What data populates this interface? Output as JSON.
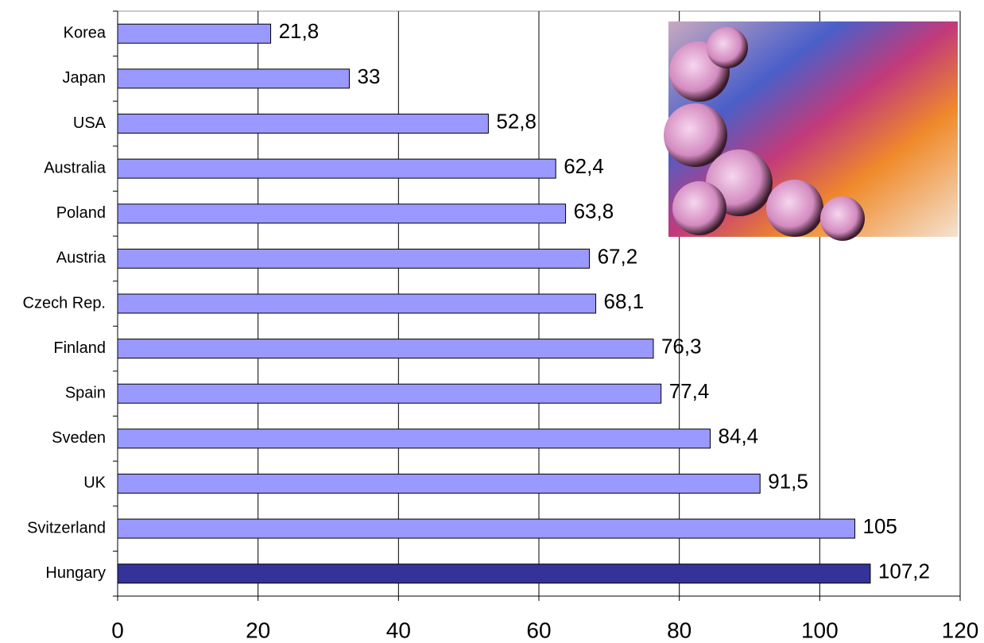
{
  "chart_data": {
    "type": "barh",
    "categories": [
      "Korea",
      "Japan",
      "USA",
      "Australia",
      "Poland",
      "Austria",
      "Czech Rep.",
      "Finland",
      "Spain",
      "Sveden",
      "UK",
      "Svitzerland",
      "Hungary"
    ],
    "values": [
      21.8,
      33,
      52.8,
      62.4,
      63.8,
      67.2,
      68.1,
      76.3,
      77.4,
      84.4,
      91.5,
      105,
      107.2
    ],
    "value_labels": [
      "21,8",
      "33",
      "52,8",
      "62,4",
      "63,8",
      "67,2",
      "68,1",
      "76,3",
      "77,4",
      "84,4",
      "91,5",
      "105",
      "107,2"
    ],
    "colors": [
      "#9999ff",
      "#9999ff",
      "#9999ff",
      "#9999ff",
      "#9999ff",
      "#9999ff",
      "#9999ff",
      "#9999ff",
      "#9999ff",
      "#9999ff",
      "#9999ff",
      "#9999ff",
      "#333399"
    ],
    "xlim": [
      0,
      120
    ],
    "xticks": [
      0,
      20,
      40,
      60,
      80,
      100,
      120
    ],
    "grid": true
  }
}
